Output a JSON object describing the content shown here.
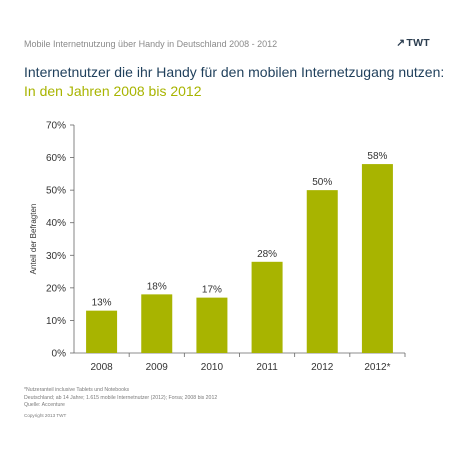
{
  "header": {
    "subtitle": "Mobile Internetnutzung über Handy in Deutschland 2008 - 2012",
    "logo_arrow": "↗",
    "logo_text": "TWT"
  },
  "titles": {
    "line1": "Internetnutzer die ihr Handy für den mobilen Internetzugang nutzen:",
    "line2": "In den Jahren 2008 bis 2012"
  },
  "chart_data": {
    "type": "bar",
    "categories": [
      "2008",
      "2009",
      "2010",
      "2011",
      "2012",
      "2012*"
    ],
    "values": [
      13,
      18,
      17,
      28,
      50,
      58
    ],
    "data_labels": [
      "13%",
      "18%",
      "17%",
      "28%",
      "50%",
      "58%"
    ],
    "ylabel": "Anteil der Befragten",
    "ylim": [
      0,
      70
    ],
    "yticks": [
      0,
      10,
      20,
      30,
      40,
      50,
      60,
      70
    ],
    "ytick_labels": [
      "0%",
      "10%",
      "20%",
      "30%",
      "40%",
      "50%",
      "60%",
      "70%"
    ],
    "grid": false,
    "bar_color": "#a8b400"
  },
  "footnotes": {
    "line1": "*Nutzeranteil inclusive Tablets und Notebooks",
    "line2": "Deutschland; ab 14 Jahre; 1.615 mobile Internetnutzer (2012); Forsa; 2008 bis 2012",
    "line3": "Quelle: Accenture",
    "copyright": "Copyright 2013 TWT"
  }
}
